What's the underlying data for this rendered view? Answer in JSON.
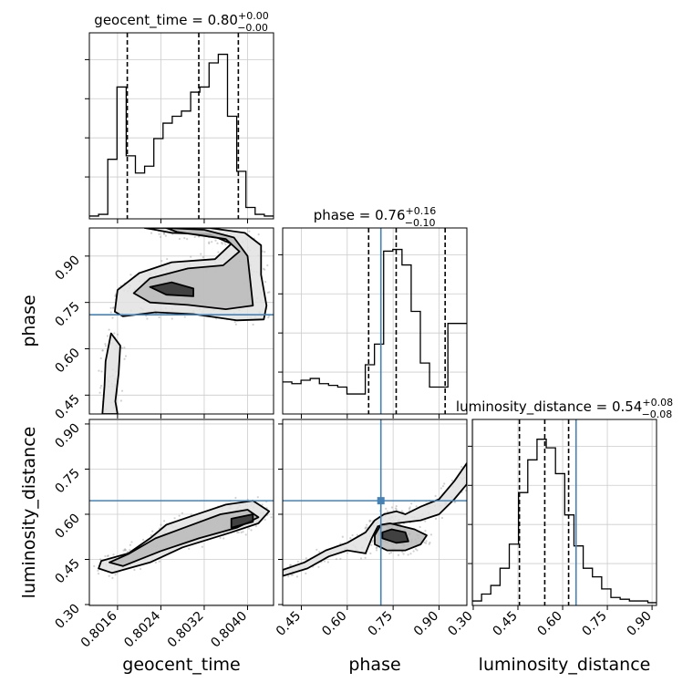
{
  "chart_data": {
    "type": "corner",
    "parameters": [
      "geocent_time",
      "phase",
      "luminosity_distance"
    ],
    "axis_labels": {
      "geocent_time": "geocent_time",
      "phase": "phase",
      "luminosity_distance": "luminosity_distance"
    },
    "ticks": {
      "geocent_time": [
        "0.8016",
        "0.8024",
        "0.8032",
        "0.8040"
      ],
      "phase": [
        "0.45",
        "0.60",
        "0.75",
        "0.90"
      ],
      "luminosity_distance": [
        "0.30",
        "0.45",
        "0.60",
        "0.75",
        "0.90"
      ]
    },
    "ranges": {
      "geocent_time": [
        0.80108,
        0.80448
      ],
      "phase": [
        0.389,
        0.991
      ],
      "luminosity_distance": [
        0.297,
        0.915
      ]
    },
    "titles": {
      "geocent_time": {
        "name": "geocent_time",
        "value": "0.80",
        "plus": "+0.00",
        "minus": "−0.00"
      },
      "phase": {
        "name": "phase",
        "value": "0.76",
        "plus": "+0.16",
        "minus": "−0.10"
      },
      "luminosity_distance": {
        "name": "luminosity_distance",
        "value": "0.54",
        "plus": "+0.08",
        "minus": "−0.08"
      }
    },
    "truth": {
      "phase": 0.71,
      "luminosity_distance": 0.645
    },
    "quantiles": {
      "geocent_time": [
        0.80178,
        0.8031,
        0.80383
      ],
      "phase": [
        0.67,
        0.76,
        0.92
      ],
      "luminosity_distance": [
        0.455,
        0.54,
        0.62
      ]
    },
    "histograms": {
      "geocent_time": {
        "edges": [
          0.80108,
          0.80125,
          0.80142,
          0.80159,
          0.80176,
          0.80193,
          0.8021,
          0.80227,
          0.80244,
          0.80261,
          0.80278,
          0.80295,
          0.80312,
          0.80329,
          0.80346,
          0.80363,
          0.8038,
          0.80397,
          0.80414,
          0.80431,
          0.80448
        ],
        "counts": [
          0,
          0.01,
          0.33,
          0.75,
          0.35,
          0.25,
          0.29,
          0.45,
          0.54,
          0.58,
          0.61,
          0.72,
          0.75,
          0.89,
          0.94,
          0.58,
          0.26,
          0.05,
          0.01,
          0
        ]
      },
      "phase": {
        "edges": [
          0.389,
          0.419,
          0.449,
          0.479,
          0.509,
          0.539,
          0.569,
          0.599,
          0.629,
          0.659,
          0.689,
          0.719,
          0.749,
          0.779,
          0.809,
          0.839,
          0.869,
          0.899,
          0.929,
          0.959,
          0.991
        ],
        "counts": [
          0.17,
          0.16,
          0.18,
          0.19,
          0.16,
          0.15,
          0.14,
          0.1,
          0.1,
          0.27,
          0.39,
          0.93,
          0.94,
          0.85,
          0.58,
          0.28,
          0.14,
          0.14,
          0.51,
          0.51
        ]
      },
      "luminosity_distance": {
        "edges": [
          0.297,
          0.328,
          0.359,
          0.39,
          0.421,
          0.452,
          0.483,
          0.514,
          0.545,
          0.576,
          0.607,
          0.638,
          0.669,
          0.7,
          0.731,
          0.762,
          0.793,
          0.824,
          0.855,
          0.886,
          0.915
        ],
        "counts": [
          0.01,
          0.05,
          0.1,
          0.2,
          0.34,
          0.64,
          0.83,
          0.95,
          0.9,
          0.75,
          0.51,
          0.33,
          0.2,
          0.15,
          0.08,
          0.03,
          0.02,
          0.01,
          0.01,
          0
        ]
      }
    },
    "contours": {
      "phase_vs_geocent_time": {
        "outer": [
          [
            0.8021,
            0.991
          ],
          [
            0.8033,
            0.991
          ],
          [
            0.80395,
            0.975
          ],
          [
            0.80425,
            0.935
          ],
          [
            0.80425,
            0.84
          ],
          [
            0.80435,
            0.74
          ],
          [
            0.8043,
            0.695
          ],
          [
            0.8038,
            0.692
          ],
          [
            0.803,
            0.712
          ],
          [
            0.8023,
            0.718
          ],
          [
            0.8017,
            0.705
          ],
          [
            0.80155,
            0.72
          ],
          [
            0.8016,
            0.79
          ],
          [
            0.802,
            0.845
          ],
          [
            0.8026,
            0.88
          ],
          [
            0.8034,
            0.89
          ],
          [
            0.8037,
            0.94
          ],
          [
            0.8033,
            0.97
          ],
          [
            0.8026,
            0.975
          ],
          [
            0.8023,
            0.985
          ],
          [
            0.8021,
            0.991
          ]
        ],
        "mid": [
          [
            0.8025,
            0.991
          ],
          [
            0.8032,
            0.985
          ],
          [
            0.80375,
            0.96
          ],
          [
            0.804,
            0.9
          ],
          [
            0.80405,
            0.82
          ],
          [
            0.8041,
            0.74
          ],
          [
            0.8036,
            0.728
          ],
          [
            0.8029,
            0.742
          ],
          [
            0.8022,
            0.75
          ],
          [
            0.8019,
            0.78
          ],
          [
            0.8022,
            0.828
          ],
          [
            0.8029,
            0.86
          ],
          [
            0.80355,
            0.87
          ],
          [
            0.80385,
            0.915
          ],
          [
            0.8036,
            0.955
          ],
          [
            0.8031,
            0.968
          ],
          [
            0.8027,
            0.978
          ],
          [
            0.8025,
            0.991
          ]
        ],
        "inner": [
          [
            0.8022,
            0.8
          ],
          [
            0.8025,
            0.775
          ],
          [
            0.803,
            0.77
          ],
          [
            0.803,
            0.795
          ],
          [
            0.8026,
            0.815
          ],
          [
            0.8022,
            0.8
          ]
        ],
        "tail": [
          [
            0.80132,
            0.389
          ],
          [
            0.80136,
            0.48
          ],
          [
            0.80138,
            0.56
          ],
          [
            0.80148,
            0.65
          ],
          [
            0.80165,
            0.61
          ],
          [
            0.80162,
            0.52
          ],
          [
            0.80156,
            0.43
          ],
          [
            0.8016,
            0.389
          ]
        ]
      },
      "luminosity_distance_vs_geocent_time": {
        "outer": [
          [
            0.8015,
            0.405
          ],
          [
            0.8022,
            0.44
          ],
          [
            0.8028,
            0.49
          ],
          [
            0.8037,
            0.54
          ],
          [
            0.8042,
            0.57
          ],
          [
            0.8044,
            0.61
          ],
          [
            0.8041,
            0.645
          ],
          [
            0.8036,
            0.632
          ],
          [
            0.803,
            0.596
          ],
          [
            0.8025,
            0.565
          ],
          [
            0.8022,
            0.52
          ],
          [
            0.8018,
            0.47
          ],
          [
            0.8013,
            0.445
          ],
          [
            0.80125,
            0.42
          ],
          [
            0.8015,
            0.405
          ]
        ],
        "mid": [
          [
            0.8017,
            0.428
          ],
          [
            0.8024,
            0.478
          ],
          [
            0.8031,
            0.52
          ],
          [
            0.8038,
            0.555
          ],
          [
            0.8042,
            0.59
          ],
          [
            0.804,
            0.615
          ],
          [
            0.8035,
            0.6
          ],
          [
            0.8029,
            0.56
          ],
          [
            0.8023,
            0.52
          ],
          [
            0.8018,
            0.468
          ],
          [
            0.80145,
            0.44
          ],
          [
            0.8017,
            0.428
          ]
        ],
        "inner": [
          [
            0.8037,
            0.555
          ],
          [
            0.8041,
            0.575
          ],
          [
            0.8041,
            0.6
          ],
          [
            0.8037,
            0.585
          ],
          [
            0.8037,
            0.555
          ]
        ]
      },
      "luminosity_distance_vs_phase": {
        "outer": [
          [
            0.389,
            0.395
          ],
          [
            0.47,
            0.42
          ],
          [
            0.54,
            0.46
          ],
          [
            0.6,
            0.48
          ],
          [
            0.66,
            0.47
          ],
          [
            0.68,
            0.52
          ],
          [
            0.7,
            0.56
          ],
          [
            0.76,
            0.57
          ],
          [
            0.84,
            0.58
          ],
          [
            0.9,
            0.6
          ],
          [
            0.95,
            0.65
          ],
          [
            0.991,
            0.7
          ],
          [
            0.991,
            0.77
          ],
          [
            0.95,
            0.71
          ],
          [
            0.9,
            0.65
          ],
          [
            0.84,
            0.625
          ],
          [
            0.79,
            0.6
          ],
          [
            0.76,
            0.61
          ],
          [
            0.72,
            0.6
          ],
          [
            0.69,
            0.58
          ],
          [
            0.66,
            0.54
          ],
          [
            0.6,
            0.505
          ],
          [
            0.53,
            0.48
          ],
          [
            0.46,
            0.44
          ],
          [
            0.389,
            0.415
          ]
        ],
        "mid": [
          [
            0.69,
            0.5
          ],
          [
            0.73,
            0.48
          ],
          [
            0.79,
            0.48
          ],
          [
            0.84,
            0.5
          ],
          [
            0.86,
            0.53
          ],
          [
            0.82,
            0.55
          ],
          [
            0.78,
            0.56
          ],
          [
            0.74,
            0.57
          ],
          [
            0.71,
            0.565
          ],
          [
            0.69,
            0.53
          ],
          [
            0.69,
            0.5
          ]
        ],
        "inner": [
          [
            0.715,
            0.52
          ],
          [
            0.76,
            0.505
          ],
          [
            0.8,
            0.51
          ],
          [
            0.79,
            0.54
          ],
          [
            0.745,
            0.55
          ],
          [
            0.715,
            0.54
          ],
          [
            0.715,
            0.52
          ]
        ]
      }
    },
    "panels": [
      {
        "row": 0,
        "col": 0,
        "kind": "hist",
        "x": "geocent_time"
      },
      {
        "row": 1,
        "col": 0,
        "kind": "2d",
        "x": "geocent_time",
        "y": "phase"
      },
      {
        "row": 1,
        "col": 1,
        "kind": "hist",
        "x": "phase"
      },
      {
        "row": 2,
        "col": 0,
        "kind": "2d",
        "x": "geocent_time",
        "y": "luminosity_distance"
      },
      {
        "row": 2,
        "col": 1,
        "kind": "2d",
        "x": "phase",
        "y": "luminosity_distance"
      },
      {
        "row": 2,
        "col": 2,
        "kind": "hist",
        "x": "luminosity_distance"
      }
    ],
    "grid": true,
    "colors": {
      "truth": "#4682b4",
      "line": "#000000",
      "grid": "#cccccc",
      "scatter": "#9a9a9a"
    }
  }
}
